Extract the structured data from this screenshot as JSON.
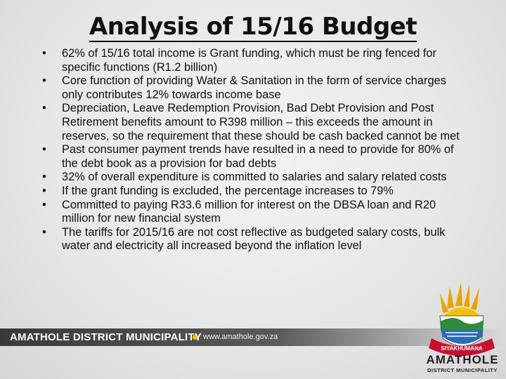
{
  "header": {
    "title": "Analysis of 15/16 Budget"
  },
  "bullets": [
    "62% of 15/16 total income is Grant funding, which must be ring fenced for  specific functions (R1.2 billion)",
    "Core function of providing Water & Sanitation in the form of service charges only contributes 12% towards income base",
    "Depreciation, Leave Redemption Provision, Bad Debt Provision and Post Retirement benefits amount to R398 million – this exceeds the amount in reserves, so the requirement that these should be cash backed  cannot be met",
    "Past consumer payment trends have resulted in a need to provide for 80% of the debt book as a provision for bad debts",
    "32% of overall expenditure is committed to salaries and salary related costs",
    "If the grant funding is excluded, the percentage increases to 79%",
    "Committed to paying R33.6 million for interest on the DBSA loan and R20 million for new financial system",
    "The tariffs for 2015/16 are not cost reflective as budgeted salary costs,  bulk water and electricity all increased beyond the inflation level"
  ],
  "footer": {
    "organization": "AMATHOLE DISTRICT MUNICIPALITY",
    "website": "www.amathole.gov.za"
  },
  "logo": {
    "motto": "SIYAKHUMANA",
    "name": "AMATHOLE",
    "subtitle": "DISTRICT MUNICIPALITY"
  }
}
